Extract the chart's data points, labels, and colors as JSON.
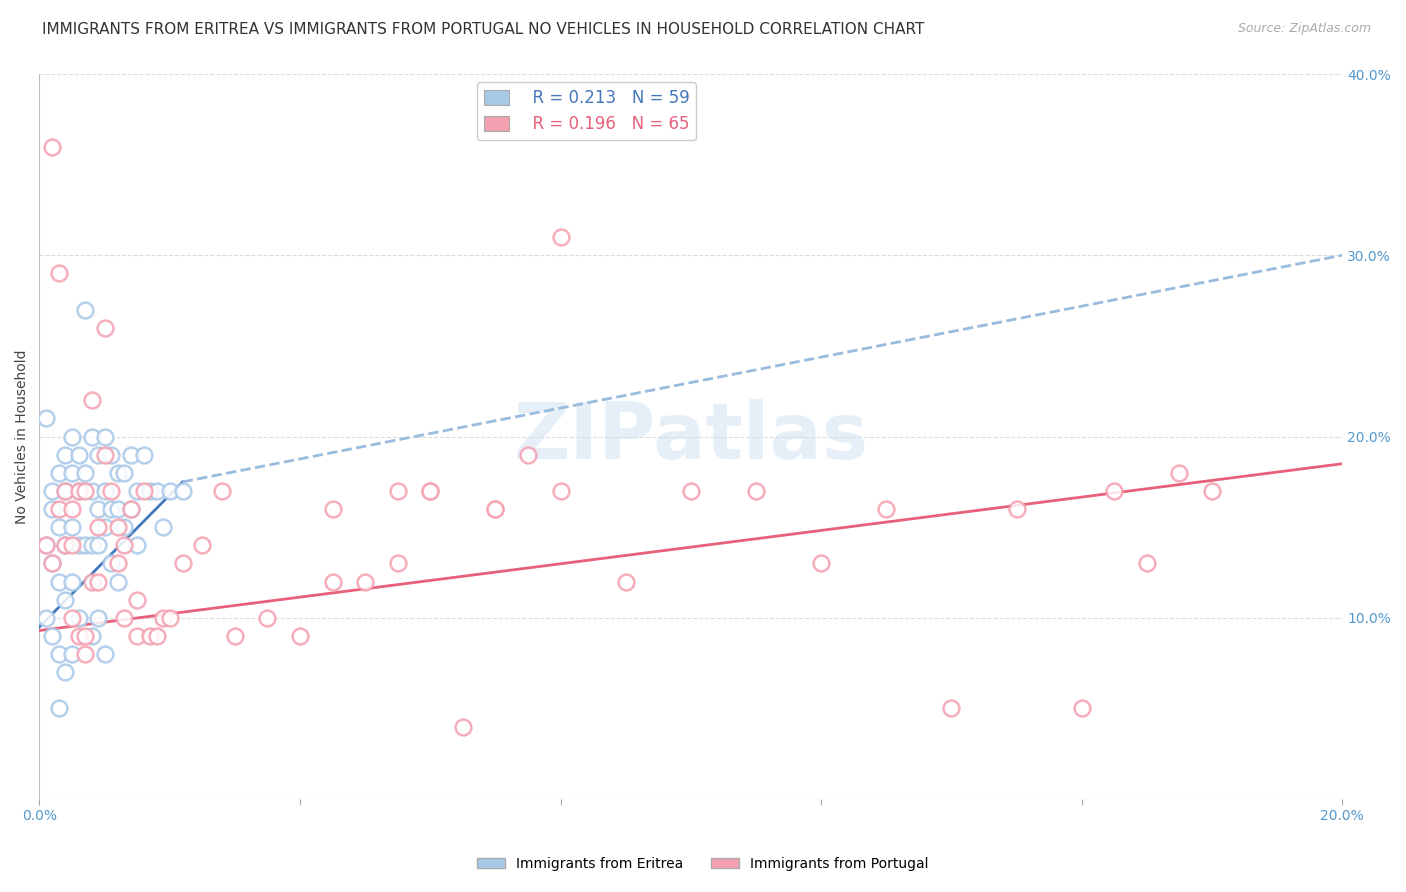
{
  "title": "IMMIGRANTS FROM ERITREA VS IMMIGRANTS FROM PORTUGAL NO VEHICLES IN HOUSEHOLD CORRELATION CHART",
  "source": "Source: ZipAtlas.com",
  "ylabel": "No Vehicles in Household",
  "watermark": "ZIPatlas",
  "legend_eritrea": "Immigrants from Eritrea",
  "legend_portugal": "Immigrants from Portugal",
  "R_eritrea": 0.213,
  "N_eritrea": 59,
  "R_portugal": 0.196,
  "N_portugal": 65,
  "color_eritrea": "#a8c8e8",
  "color_portugal": "#f4a0b0",
  "trendline_eritrea_color": "#4477bb",
  "trendline_eritrea_dash_color": "#99bbdd",
  "trendline_portugal_color": "#e8607a",
  "xlim": [
    0.0,
    0.2
  ],
  "ylim": [
    0.0,
    0.4
  ],
  "x_ticks": [
    0.0,
    0.04,
    0.08,
    0.12,
    0.16,
    0.2
  ],
  "x_tick_labels": [
    "0.0%",
    "",
    "",
    "",
    "",
    "20.0%"
  ],
  "y_ticks": [
    0.0,
    0.1,
    0.2,
    0.3,
    0.4
  ],
  "y_tick_labels": [
    "",
    "10.0%",
    "20.0%",
    "30.0%",
    "40.0%"
  ],
  "eritrea_x": [
    0.001,
    0.001,
    0.001,
    0.002,
    0.002,
    0.002,
    0.002,
    0.003,
    0.003,
    0.003,
    0.003,
    0.003,
    0.004,
    0.004,
    0.004,
    0.004,
    0.004,
    0.005,
    0.005,
    0.005,
    0.005,
    0.005,
    0.006,
    0.006,
    0.006,
    0.006,
    0.007,
    0.007,
    0.007,
    0.008,
    0.008,
    0.008,
    0.008,
    0.009,
    0.009,
    0.009,
    0.009,
    0.01,
    0.01,
    0.01,
    0.01,
    0.011,
    0.011,
    0.011,
    0.012,
    0.012,
    0.012,
    0.013,
    0.013,
    0.014,
    0.014,
    0.015,
    0.015,
    0.016,
    0.017,
    0.018,
    0.019,
    0.02,
    0.022
  ],
  "eritrea_y": [
    0.21,
    0.14,
    0.1,
    0.17,
    0.16,
    0.13,
    0.09,
    0.18,
    0.15,
    0.12,
    0.08,
    0.05,
    0.19,
    0.17,
    0.14,
    0.11,
    0.07,
    0.2,
    0.18,
    0.15,
    0.12,
    0.08,
    0.19,
    0.17,
    0.14,
    0.1,
    0.27,
    0.18,
    0.14,
    0.2,
    0.17,
    0.14,
    0.09,
    0.19,
    0.16,
    0.14,
    0.1,
    0.2,
    0.17,
    0.15,
    0.08,
    0.19,
    0.16,
    0.13,
    0.18,
    0.16,
    0.12,
    0.18,
    0.15,
    0.19,
    0.16,
    0.17,
    0.14,
    0.19,
    0.17,
    0.17,
    0.15,
    0.17,
    0.17
  ],
  "portugal_x": [
    0.001,
    0.002,
    0.002,
    0.003,
    0.003,
    0.004,
    0.004,
    0.005,
    0.005,
    0.005,
    0.006,
    0.006,
    0.007,
    0.007,
    0.007,
    0.008,
    0.008,
    0.009,
    0.009,
    0.01,
    0.01,
    0.011,
    0.012,
    0.012,
    0.013,
    0.013,
    0.014,
    0.015,
    0.015,
    0.016,
    0.017,
    0.018,
    0.019,
    0.02,
    0.022,
    0.025,
    0.028,
    0.03,
    0.035,
    0.04,
    0.045,
    0.05,
    0.055,
    0.06,
    0.065,
    0.07,
    0.075,
    0.08,
    0.09,
    0.1,
    0.11,
    0.12,
    0.13,
    0.14,
    0.15,
    0.16,
    0.165,
    0.17,
    0.175,
    0.18,
    0.06,
    0.07,
    0.08,
    0.045,
    0.055
  ],
  "portugal_y": [
    0.14,
    0.36,
    0.13,
    0.29,
    0.16,
    0.17,
    0.14,
    0.16,
    0.14,
    0.1,
    0.17,
    0.09,
    0.17,
    0.09,
    0.08,
    0.22,
    0.12,
    0.15,
    0.12,
    0.26,
    0.19,
    0.17,
    0.15,
    0.13,
    0.1,
    0.14,
    0.16,
    0.11,
    0.09,
    0.17,
    0.09,
    0.09,
    0.1,
    0.1,
    0.13,
    0.14,
    0.17,
    0.09,
    0.1,
    0.09,
    0.12,
    0.12,
    0.17,
    0.17,
    0.04,
    0.16,
    0.19,
    0.31,
    0.12,
    0.17,
    0.17,
    0.13,
    0.16,
    0.05,
    0.16,
    0.05,
    0.17,
    0.13,
    0.18,
    0.17,
    0.17,
    0.16,
    0.17,
    0.16,
    0.13
  ],
  "eritrea_trend_x0": 0.0,
  "eritrea_trend_y0": 0.095,
  "eritrea_trend_x1": 0.022,
  "eritrea_trend_y1": 0.175,
  "eritrea_trend_xend": 0.2,
  "eritrea_trend_yend": 0.3,
  "portugal_trend_x0": 0.0,
  "portugal_trend_y0": 0.093,
  "portugal_trend_x1": 0.2,
  "portugal_trend_y1": 0.185,
  "background_color": "#ffffff",
  "grid_color": "#dddddd",
  "title_fontsize": 11,
  "label_fontsize": 10,
  "tick_fontsize": 10,
  "axis_color": "#5599cc"
}
